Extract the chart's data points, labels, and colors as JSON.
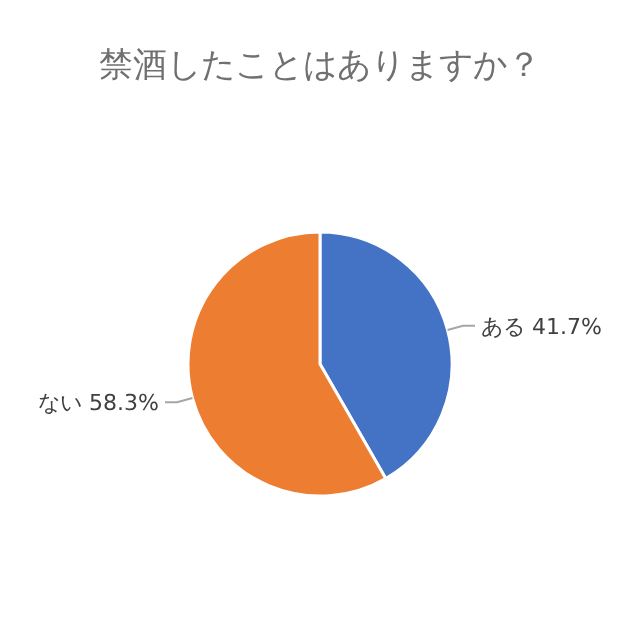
{
  "chart_data": {
    "type": "pie",
    "title": "禁酒したことはありますか？",
    "categories": [
      "ある",
      "ない"
    ],
    "values": [
      41.7,
      58.3
    ],
    "colors": [
      "#4472c4",
      "#ed7d31"
    ],
    "value_labels": [
      "41.7%",
      "58.3%"
    ]
  }
}
